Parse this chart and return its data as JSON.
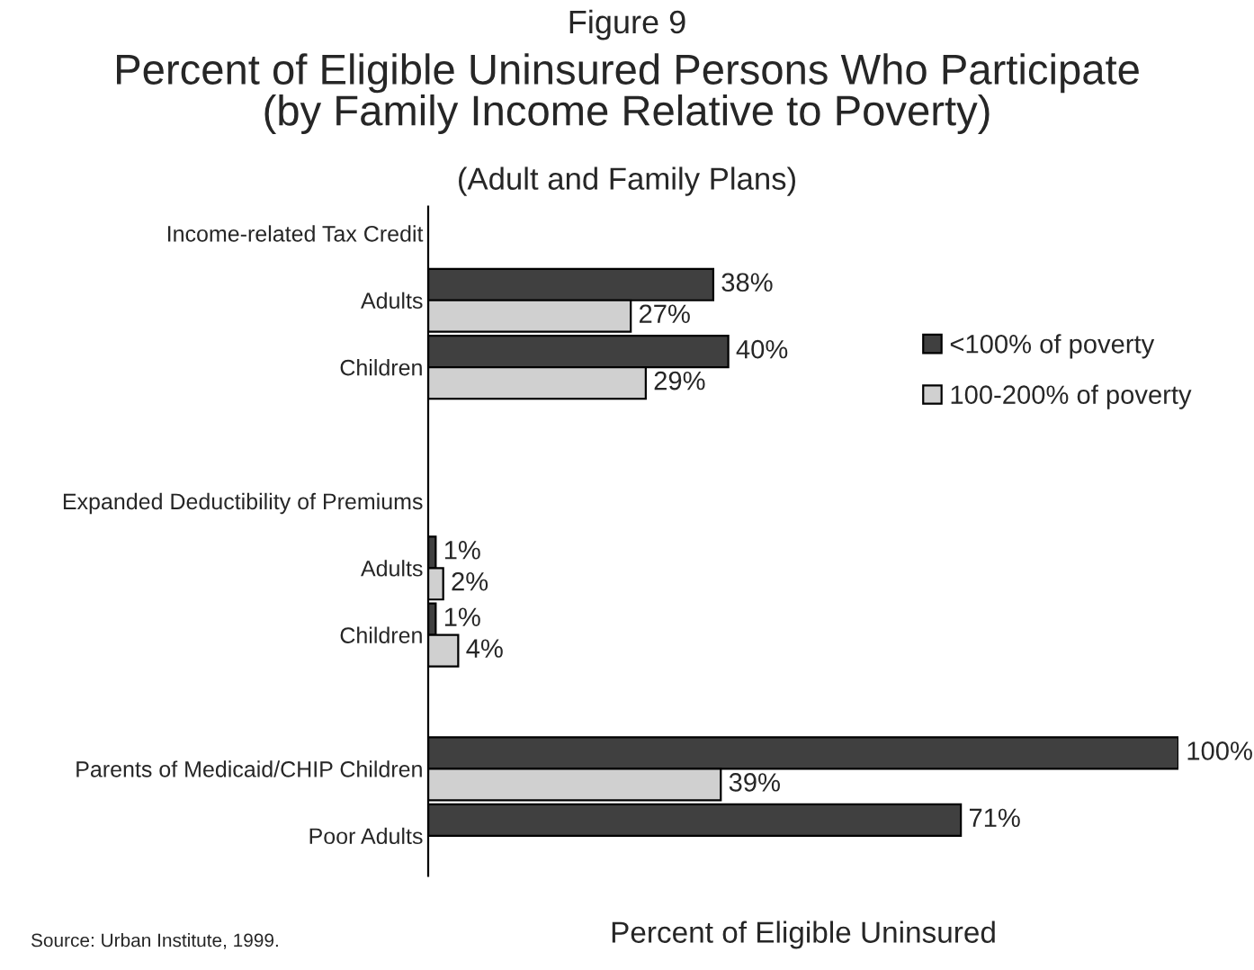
{
  "chart_data": {
    "type": "bar",
    "orientation": "horizontal",
    "title": "Percent of Eligible Uninsured Persons Who Participate\n(by Family Income Relative to Poverty)",
    "subtitle": "(Adult and Family Plans)",
    "xlabel": "Percent of Eligible Uninsured",
    "annotations": [
      "Figure 9",
      "Source: Urban Institute, 1999."
    ],
    "categories": [
      "Income-related Tax Credit",
      "Adults",
      "Children",
      null,
      "Expanded Deductibility of Premiums",
      "Adults",
      "Children",
      null,
      "Parents of Medicaid/CHIP Children",
      "Poor Adults"
    ],
    "series": [
      {
        "name": "<100% of poverty",
        "color": "#404040",
        "values": [
          null,
          38,
          40,
          null,
          null,
          1,
          1,
          null,
          100,
          71
        ],
        "value_labels": [
          null,
          "38%",
          "40%",
          null,
          null,
          "1%",
          "1%",
          null,
          "100%",
          "71%"
        ]
      },
      {
        "name": "100-200% of poverty",
        "color": "#d0d0d0",
        "values": [
          null,
          27,
          29,
          null,
          null,
          2,
          4,
          null,
          39,
          null
        ],
        "value_labels": [
          null,
          "27%",
          "29%",
          null,
          null,
          "2%",
          "4%",
          null,
          "39%",
          null
        ]
      }
    ],
    "xlim": [
      0,
      100
    ],
    "tick_labels": "y",
    "grid": false,
    "legend": "right"
  }
}
